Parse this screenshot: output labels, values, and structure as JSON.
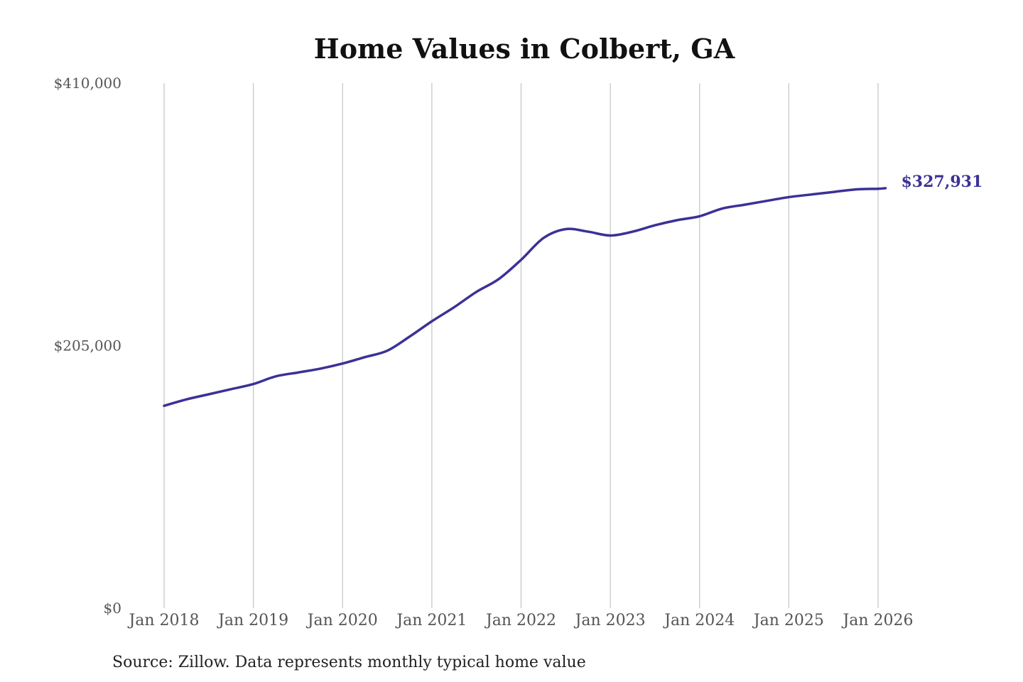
{
  "chart_data": {
    "type": "line",
    "title": "Home Values in Colbert, GA",
    "xlabel": "",
    "ylabel": "",
    "source": "Source: Zillow. Data represents monthly typical home value",
    "y_tick_labels": [
      "$410,000",
      "$205,000",
      "$0"
    ],
    "y_ticks": [
      410000,
      205000,
      0
    ],
    "ylim": [
      0,
      410000
    ],
    "x_tick_labels": [
      "Jan 2018",
      "Jan 2019",
      "Jan 2020",
      "Jan 2021",
      "Jan 2022",
      "Jan 2023",
      "Jan 2024",
      "Jan 2025",
      "Jan 2026"
    ],
    "x_ticks": [
      "2018-01",
      "2019-01",
      "2020-01",
      "2021-01",
      "2022-01",
      "2023-01",
      "2024-01",
      "2025-01",
      "2026-01"
    ],
    "grid": "vertical",
    "end_label": "$327,931",
    "series": [
      {
        "color": "#3b3196",
        "x": [
          "2018-01",
          "2018-04",
          "2018-07",
          "2018-10",
          "2019-01",
          "2019-04",
          "2019-07",
          "2019-10",
          "2020-01",
          "2020-04",
          "2020-07",
          "2020-10",
          "2021-01",
          "2021-04",
          "2021-07",
          "2021-10",
          "2022-01",
          "2022-04",
          "2022-07",
          "2022-10",
          "2023-01",
          "2023-04",
          "2023-07",
          "2023-10",
          "2024-01",
          "2024-04",
          "2024-07",
          "2024-10",
          "2025-01",
          "2025-04",
          "2025-07",
          "2025-10",
          "2026-01",
          "2026-02"
        ],
        "values": [
          158000,
          163000,
          167000,
          171000,
          175000,
          181000,
          184000,
          187000,
          191000,
          196000,
          201000,
          212000,
          224000,
          235000,
          247000,
          257000,
          272000,
          289000,
          296000,
          294000,
          291000,
          294000,
          299000,
          303000,
          306000,
          312000,
          315000,
          318000,
          321000,
          323000,
          325000,
          327000,
          327500,
          327931
        ]
      }
    ]
  },
  "colors": {
    "line": "#3b3196",
    "grid": "#c8c8c8",
    "background": "#ffffff"
  }
}
